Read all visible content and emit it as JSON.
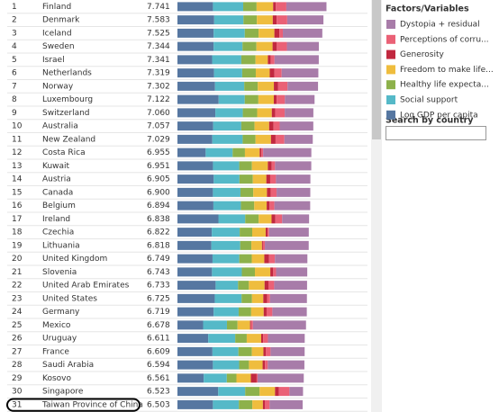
{
  "chart_data": {
    "type": "stacked_bar",
    "orientation": "horizontal",
    "ranks": [
      "1",
      "2",
      "3",
      "4",
      "5",
      "6",
      "7",
      "8",
      "9",
      "10",
      "11",
      "12",
      "13",
      "14",
      "15",
      "16",
      "17",
      "18",
      "19",
      "20",
      "21",
      "22",
      "23",
      "24",
      "25",
      "26",
      "27",
      "28",
      "29",
      "30",
      "31"
    ],
    "categories": [
      "Finland",
      "Denmark",
      "Iceland",
      "Sweden",
      "Israel",
      "Netherlands",
      "Norway",
      "Luxembourg",
      "Switzerland",
      "Australia",
      "New Zealand",
      "Costa Rica",
      "Kuwait",
      "Austria",
      "Canada",
      "Belgium",
      "Ireland",
      "Czechia",
      "Lithuania",
      "United Kingdom",
      "Slovenia",
      "United Arab Emirates",
      "United States",
      "Germany",
      "Mexico",
      "Uruguay",
      "France",
      "Saudi Arabia",
      "Kosovo",
      "Singapore",
      "Taiwan Province of China"
    ],
    "scores": [
      7.741,
      7.583,
      7.525,
      7.344,
      7.341,
      7.319,
      7.302,
      7.122,
      7.06,
      7.057,
      7.029,
      6.955,
      6.951,
      6.905,
      6.9,
      6.894,
      6.838,
      6.822,
      6.818,
      6.749,
      6.743,
      6.733,
      6.725,
      6.719,
      6.678,
      6.611,
      6.609,
      6.594,
      6.561,
      6.523,
      6.503
    ],
    "score_labels": [
      "7.741",
      "7.583",
      "7.525",
      "7.344",
      "7.341",
      "7.319",
      "7.302",
      "7.122",
      "7.060",
      "7.057",
      "7.029",
      "6.955",
      "6.951",
      "6.905",
      "6.900",
      "6.894",
      "6.838",
      "6.822",
      "6.818",
      "6.749",
      "6.743",
      "6.733",
      "6.725",
      "6.719",
      "6.678",
      "6.611",
      "6.609",
      "6.594",
      "6.561",
      "6.523",
      "6.503"
    ],
    "xlim": [
      0,
      8
    ],
    "legend_title": "Factors/Variables",
    "series": [
      {
        "name": "Dystopia + residual",
        "color": "#a87ca9",
        "values": [
          2.083,
          1.881,
          2.05,
          1.658,
          2.298,
          1.906,
          1.586,
          1.539,
          1.488,
          1.746,
          1.474,
          2.503,
          1.882,
          1.788,
          1.75,
          1.859,
          1.4,
          2.059,
          2.278,
          1.687,
          1.619,
          1.708,
          1.916,
          1.789,
          2.756,
          1.911,
          1.771,
          1.9,
          2.397,
          0.705,
          1.715
        ]
      },
      {
        "name": "Perceptions of corru...",
        "color": "#ea6176",
        "values": [
          0.546,
          0.548,
          0.182,
          0.524,
          0.193,
          0.372,
          0.484,
          0.432,
          0.498,
          0.323,
          0.459,
          0.097,
          0.172,
          0.3,
          0.3,
          0.25,
          0.35,
          0.08,
          0.1,
          0.3,
          0.15,
          0.3,
          0.15,
          0.3,
          0.1,
          0.25,
          0.25,
          0.15,
          0.05,
          0.55,
          0.25
        ]
      },
      {
        "name": "Generosity",
        "color": "#c1283f",
        "values": [
          0.142,
          0.204,
          0.258,
          0.221,
          0.153,
          0.247,
          0.224,
          0.146,
          0.173,
          0.225,
          0.239,
          0.082,
          0.2,
          0.2,
          0.2,
          0.15,
          0.2,
          0.1,
          0.05,
          0.25,
          0.15,
          0.2,
          0.2,
          0.15,
          0.05,
          0.1,
          0.12,
          0.12,
          0.3,
          0.2,
          0.1
        ]
      },
      {
        "name": "Freedom to make life...",
        "color": "#efbd3e",
        "values": [
          0.859,
          0.823,
          0.819,
          0.838,
          0.641,
          0.725,
          0.835,
          0.801,
          0.759,
          0.756,
          0.8,
          0.767,
          0.827,
          0.7,
          0.712,
          0.646,
          0.669,
          0.7,
          0.55,
          0.65,
          0.8,
          0.815,
          0.586,
          0.65,
          0.65,
          0.75,
          0.6,
          0.71,
          0.75,
          0.8,
          0.55
        ]
      },
      {
        "name": "Healthy life expecta...",
        "color": "#8db14b",
        "values": [
          0.695,
          0.699,
          0.718,
          0.724,
          0.74,
          0.706,
          0.704,
          0.708,
          0.747,
          0.692,
          0.67,
          0.639,
          0.661,
          0.696,
          0.665,
          0.694,
          0.7,
          0.65,
          0.58,
          0.65,
          0.68,
          0.563,
          0.542,
          0.65,
          0.55,
          0.6,
          0.7,
          0.511,
          0.5,
          0.75,
          0.7
        ]
      },
      {
        "name": "Social support",
        "color": "#55b9c8",
        "values": [
          1.572,
          1.52,
          1.617,
          1.501,
          1.513,
          1.462,
          1.517,
          1.355,
          1.425,
          1.461,
          1.577,
          1.401,
          1.364,
          1.336,
          1.43,
          1.427,
          1.39,
          1.45,
          1.5,
          1.39,
          1.55,
          1.164,
          1.392,
          1.3,
          1.239,
          1.4,
          1.348,
          1.361,
          1.2,
          1.4,
          1.346
        ]
      },
      {
        "name": "Log GDP per capita",
        "color": "#5677a1",
        "values": [
          1.844,
          1.908,
          1.881,
          1.878,
          1.803,
          1.901,
          1.952,
          2.141,
          1.97,
          1.854,
          1.81,
          1.466,
          1.845,
          1.885,
          1.843,
          1.868,
          2.129,
          1.783,
          1.76,
          1.822,
          1.794,
          1.983,
          1.939,
          1.88,
          1.333,
          1.6,
          1.818,
          1.842,
          1.364,
          2.118,
          1.842
        ]
      }
    ],
    "search_label": "Search by country"
  }
}
